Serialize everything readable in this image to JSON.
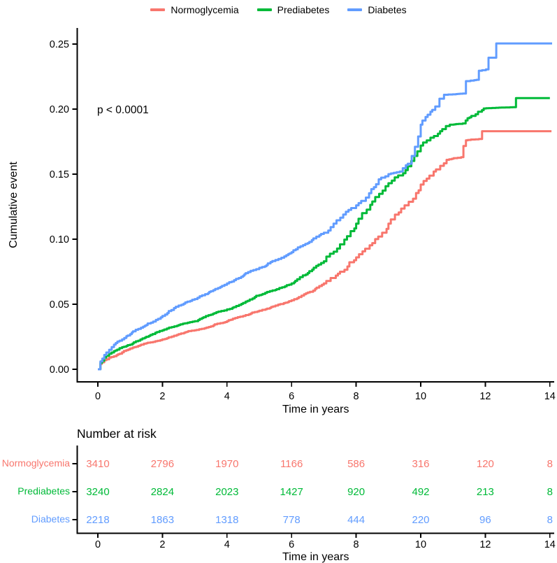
{
  "figure": {
    "background": "#ffffff",
    "legend": {
      "items": [
        {
          "id": "normoglycemia",
          "label": "Normoglycemia",
          "color": "#F8766D"
        },
        {
          "id": "prediabetes",
          "label": "Prediabetes",
          "color": "#00BA38"
        },
        {
          "id": "diabetes",
          "label": "Diabetes",
          "color": "#619CFF"
        }
      ]
    }
  },
  "chart_data": {
    "type": "line",
    "subtype": "cumulative-incidence-step-curves",
    "title": "",
    "xlabel": "Time in years",
    "ylabel": "Cumulative event",
    "annotation": {
      "text": "p < 0.0001"
    },
    "xlim": [
      0,
      14.1
    ],
    "ylim": [
      0,
      0.26
    ],
    "grid": false,
    "legend_position": "top-center",
    "x_ticks": [
      {
        "value": 0,
        "label": "0"
      },
      {
        "value": 2,
        "label": "2"
      },
      {
        "value": 4,
        "label": "4"
      },
      {
        "value": 6,
        "label": "6"
      },
      {
        "value": 8,
        "label": "8"
      },
      {
        "value": 10,
        "label": "10"
      },
      {
        "value": 12,
        "label": "12"
      },
      {
        "value": 14,
        "label": "14"
      }
    ],
    "y_ticks": [
      {
        "value": 0.0,
        "label": "0.00"
      },
      {
        "value": 0.05,
        "label": "0.05"
      },
      {
        "value": 0.1,
        "label": "0.10"
      },
      {
        "value": 0.15,
        "label": "0.15"
      },
      {
        "value": 0.2,
        "label": "0.20"
      },
      {
        "value": 0.25,
        "label": "0.25"
      }
    ],
    "series": [
      {
        "id": "normoglycemia",
        "name": "Normoglycemia",
        "color": "#F8766D",
        "points": [
          [
            0,
            0
          ],
          [
            0.08,
            0.004
          ],
          [
            0.2,
            0.007
          ],
          [
            0.35,
            0.009
          ],
          [
            0.5,
            0.01
          ],
          [
            0.75,
            0.013
          ],
          [
            1,
            0.016
          ],
          [
            1.25,
            0.018
          ],
          [
            1.5,
            0.02
          ],
          [
            2,
            0.023
          ],
          [
            2.5,
            0.027
          ],
          [
            3,
            0.03
          ],
          [
            3.5,
            0.033
          ],
          [
            4,
            0.037
          ],
          [
            4.5,
            0.041
          ],
          [
            5,
            0.045
          ],
          [
            5.5,
            0.049
          ],
          [
            6,
            0.053
          ],
          [
            6.5,
            0.059
          ],
          [
            7,
            0.066
          ],
          [
            7.5,
            0.075
          ],
          [
            8,
            0.086
          ],
          [
            8.5,
            0.097
          ],
          [
            9,
            0.112
          ],
          [
            9.5,
            0.126
          ],
          [
            10,
            0.142
          ],
          [
            10.4,
            0.152
          ],
          [
            10.8,
            0.161
          ],
          [
            11.25,
            0.163
          ],
          [
            11.4,
            0.176
          ],
          [
            11.8,
            0.177
          ],
          [
            11.9,
            0.183
          ],
          [
            14.05,
            0.183
          ]
        ]
      },
      {
        "id": "prediabetes",
        "name": "Prediabetes",
        "color": "#00BA38",
        "points": [
          [
            0,
            0
          ],
          [
            0.08,
            0.005
          ],
          [
            0.2,
            0.009
          ],
          [
            0.35,
            0.012
          ],
          [
            0.5,
            0.014
          ],
          [
            0.75,
            0.017
          ],
          [
            1,
            0.019
          ],
          [
            1.25,
            0.022
          ],
          [
            1.5,
            0.025
          ],
          [
            2,
            0.03
          ],
          [
            2.5,
            0.034
          ],
          [
            3,
            0.037
          ],
          [
            3.5,
            0.042
          ],
          [
            4,
            0.046
          ],
          [
            4.5,
            0.051
          ],
          [
            5,
            0.057
          ],
          [
            5.5,
            0.061
          ],
          [
            6,
            0.066
          ],
          [
            6.5,
            0.074
          ],
          [
            7,
            0.083
          ],
          [
            7.5,
            0.096
          ],
          [
            8,
            0.112
          ],
          [
            8.5,
            0.129
          ],
          [
            9,
            0.143
          ],
          [
            9.3,
            0.149
          ],
          [
            9.6,
            0.156
          ],
          [
            9.8,
            0.164
          ],
          [
            10,
            0.172
          ],
          [
            10.3,
            0.178
          ],
          [
            10.6,
            0.183
          ],
          [
            10.9,
            0.188
          ],
          [
            11.3,
            0.189
          ],
          [
            11.45,
            0.193
          ],
          [
            11.7,
            0.196
          ],
          [
            11.95,
            0.2005
          ],
          [
            12.85,
            0.2015
          ],
          [
            12.95,
            0.2085
          ],
          [
            14.0,
            0.2085
          ]
        ]
      },
      {
        "id": "diabetes",
        "name": "Diabetes",
        "color": "#619CFF",
        "points": [
          [
            0,
            0
          ],
          [
            0.08,
            0.006
          ],
          [
            0.2,
            0.011
          ],
          [
            0.35,
            0.015
          ],
          [
            0.5,
            0.019
          ],
          [
            0.75,
            0.023
          ],
          [
            1,
            0.027
          ],
          [
            1.25,
            0.031
          ],
          [
            1.5,
            0.034
          ],
          [
            2,
            0.041
          ],
          [
            2.5,
            0.049
          ],
          [
            3,
            0.054
          ],
          [
            3.5,
            0.06
          ],
          [
            4,
            0.066
          ],
          [
            4.5,
            0.072
          ],
          [
            5,
            0.078
          ],
          [
            5.5,
            0.084
          ],
          [
            6,
            0.09
          ],
          [
            6.5,
            0.097
          ],
          [
            7,
            0.105
          ],
          [
            7.3,
            0.112
          ],
          [
            7.6,
            0.119
          ],
          [
            8,
            0.126
          ],
          [
            8.3,
            0.132
          ],
          [
            8.55,
            0.14
          ],
          [
            8.7,
            0.146
          ],
          [
            9,
            0.15
          ],
          [
            9.35,
            0.152
          ],
          [
            9.6,
            0.158
          ],
          [
            9.72,
            0.164
          ],
          [
            9.82,
            0.171
          ],
          [
            9.92,
            0.179
          ],
          [
            10.0,
            0.188
          ],
          [
            10.15,
            0.194
          ],
          [
            10.3,
            0.198
          ],
          [
            10.45,
            0.202
          ],
          [
            10.58,
            0.208
          ],
          [
            10.72,
            0.211
          ],
          [
            11.3,
            0.212
          ],
          [
            11.4,
            0.2215
          ],
          [
            11.72,
            0.2225
          ],
          [
            11.8,
            0.2295
          ],
          [
            12.02,
            0.2305
          ],
          [
            12.1,
            0.2395
          ],
          [
            12.28,
            0.2395
          ],
          [
            12.34,
            0.2505
          ],
          [
            14.07,
            0.2505
          ]
        ]
      }
    ]
  },
  "risk_table": {
    "title": "Number at risk",
    "xlabel": "Time in years",
    "time_points": [
      0,
      2,
      4,
      6,
      8,
      10,
      12,
      14
    ],
    "x_tick_labels": [
      "0",
      "2",
      "4",
      "6",
      "8",
      "10",
      "12",
      "14"
    ],
    "rows": [
      {
        "id": "normoglycemia",
        "label": "Normoglycemia",
        "color": "#F8766D",
        "values": [
          "3410",
          "2796",
          "1970",
          "1166",
          "586",
          "316",
          "120",
          "8"
        ]
      },
      {
        "id": "prediabetes",
        "label": "Prediabetes",
        "color": "#00BA38",
        "values": [
          "3240",
          "2824",
          "2023",
          "1427",
          "920",
          "492",
          "213",
          "8"
        ]
      },
      {
        "id": "diabetes",
        "label": "Diabetes",
        "color": "#619CFF",
        "values": [
          "2218",
          "1863",
          "1318",
          "778",
          "444",
          "220",
          "96",
          "8"
        ]
      }
    ]
  }
}
